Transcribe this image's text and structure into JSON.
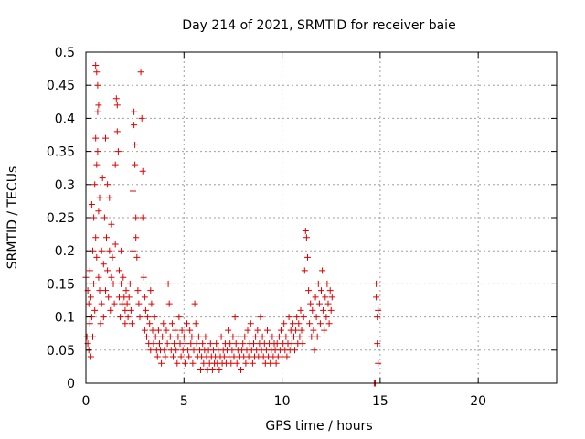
{
  "chart_data": {
    "type": "scatter",
    "title": "Day 214 of 2021, SRMTID for receiver baie",
    "xlabel": "GPS time / hours",
    "ylabel": "SRMTID / TECUs",
    "xlim": [
      0,
      24
    ],
    "ylim": [
      0,
      0.5
    ],
    "x_ticks": [
      0,
      5,
      10,
      15,
      20
    ],
    "x_tick_labels": [
      "0",
      "5",
      "10",
      "15",
      "20"
    ],
    "y_ticks": [
      0,
      0.05,
      0.1,
      0.15,
      0.2,
      0.25,
      0.3,
      0.35,
      0.4,
      0.45,
      0.5
    ],
    "y_tick_labels": [
      "0",
      "0.05",
      "0.1",
      "0.15",
      "0.2",
      "0.25",
      "0.3",
      "0.35",
      "0.4",
      "0.45",
      "0.5"
    ],
    "grid": true,
    "marker": "+",
    "color": "#e00000",
    "series": [
      {
        "name": "SRMTID",
        "points": [
          [
            0.0,
            0.16
          ],
          [
            0.05,
            0.07
          ],
          [
            0.1,
            0.14
          ],
          [
            0.1,
            0.06
          ],
          [
            0.15,
            0.12
          ],
          [
            0.15,
            0.05
          ],
          [
            0.2,
            0.09
          ],
          [
            0.2,
            0.17
          ],
          [
            0.25,
            0.04
          ],
          [
            0.25,
            0.13
          ],
          [
            0.3,
            0.1
          ],
          [
            0.3,
            0.27
          ],
          [
            0.35,
            0.2
          ],
          [
            0.35,
            0.07
          ],
          [
            0.4,
            0.25
          ],
          [
            0.4,
            0.15
          ],
          [
            0.45,
            0.3
          ],
          [
            0.45,
            0.11
          ],
          [
            0.5,
            0.37
          ],
          [
            0.5,
            0.22
          ],
          [
            0.5,
            0.48
          ],
          [
            0.55,
            0.47
          ],
          [
            0.55,
            0.33
          ],
          [
            0.55,
            0.19
          ],
          [
            0.6,
            0.45
          ],
          [
            0.6,
            0.41
          ],
          [
            0.6,
            0.35
          ],
          [
            0.65,
            0.42
          ],
          [
            0.65,
            0.26
          ],
          [
            0.65,
            0.16
          ],
          [
            0.7,
            0.14
          ],
          [
            0.7,
            0.28
          ],
          [
            0.75,
            0.09
          ],
          [
            0.8,
            0.2
          ],
          [
            0.8,
            0.12
          ],
          [
            0.85,
            0.31
          ],
          [
            0.9,
            0.18
          ],
          [
            0.9,
            0.1
          ],
          [
            0.95,
            0.25
          ],
          [
            1.0,
            0.37
          ],
          [
            1.0,
            0.14
          ],
          [
            1.05,
            0.22
          ],
          [
            1.1,
            0.3
          ],
          [
            1.1,
            0.17
          ],
          [
            1.15,
            0.13
          ],
          [
            1.2,
            0.28
          ],
          [
            1.2,
            0.2
          ],
          [
            1.25,
            0.11
          ],
          [
            1.3,
            0.24
          ],
          [
            1.3,
            0.16
          ],
          [
            1.35,
            0.19
          ],
          [
            1.4,
            0.15
          ],
          [
            1.45,
            0.12
          ],
          [
            1.5,
            0.21
          ],
          [
            1.5,
            0.33
          ],
          [
            1.55,
            0.43
          ],
          [
            1.6,
            0.42
          ],
          [
            1.6,
            0.38
          ],
          [
            1.65,
            0.35
          ],
          [
            1.7,
            0.17
          ],
          [
            1.7,
            0.13
          ],
          [
            1.75,
            0.1
          ],
          [
            1.8,
            0.2
          ],
          [
            1.8,
            0.15
          ],
          [
            1.85,
            0.12
          ],
          [
            1.9,
            0.16
          ],
          [
            1.95,
            0.13
          ],
          [
            2.0,
            0.11
          ],
          [
            2.0,
            0.09
          ],
          [
            2.05,
            0.14
          ],
          [
            2.1,
            0.12
          ],
          [
            2.15,
            0.1
          ],
          [
            2.2,
            0.13
          ],
          [
            2.25,
            0.15
          ],
          [
            2.3,
            0.11
          ],
          [
            2.35,
            0.09
          ],
          [
            2.4,
            0.29
          ],
          [
            2.4,
            0.2
          ],
          [
            2.45,
            0.41
          ],
          [
            2.45,
            0.39
          ],
          [
            2.5,
            0.36
          ],
          [
            2.5,
            0.33
          ],
          [
            2.55,
            0.25
          ],
          [
            2.55,
            0.22
          ],
          [
            2.6,
            0.19
          ],
          [
            2.65,
            0.14
          ],
          [
            2.7,
            0.12
          ],
          [
            2.75,
            0.1
          ],
          [
            2.8,
            0.47
          ],
          [
            2.85,
            0.4
          ],
          [
            2.9,
            0.32
          ],
          [
            2.9,
            0.25
          ],
          [
            2.95,
            0.16
          ],
          [
            3.0,
            0.13
          ],
          [
            3.0,
            0.08
          ],
          [
            3.05,
            0.11
          ],
          [
            3.1,
            0.07
          ],
          [
            3.15,
            0.1
          ],
          [
            3.2,
            0.06
          ],
          [
            3.25,
            0.09
          ],
          [
            3.3,
            0.14
          ],
          [
            3.3,
            0.05
          ],
          [
            3.35,
            0.12
          ],
          [
            3.4,
            0.08
          ],
          [
            3.45,
            0.06
          ],
          [
            3.5,
            0.1
          ],
          [
            3.55,
            0.07
          ],
          [
            3.6,
            0.05
          ],
          [
            3.65,
            0.04
          ],
          [
            3.7,
            0.08
          ],
          [
            3.75,
            0.06
          ],
          [
            3.8,
            0.05
          ],
          [
            3.85,
            0.03
          ],
          [
            3.9,
            0.07
          ],
          [
            3.95,
            0.09
          ],
          [
            4.0,
            0.05
          ],
          [
            4.05,
            0.04
          ],
          [
            4.1,
            0.08
          ],
          [
            4.15,
            0.06
          ],
          [
            4.2,
            0.15
          ],
          [
            4.25,
            0.12
          ],
          [
            4.3,
            0.07
          ],
          [
            4.35,
            0.05
          ],
          [
            4.4,
            0.09
          ],
          [
            4.45,
            0.04
          ],
          [
            4.5,
            0.06
          ],
          [
            4.55,
            0.08
          ],
          [
            4.6,
            0.05
          ],
          [
            4.65,
            0.03
          ],
          [
            4.7,
            0.07
          ],
          [
            4.75,
            0.1
          ],
          [
            4.8,
            0.06
          ],
          [
            4.85,
            0.04
          ],
          [
            4.9,
            0.08
          ],
          [
            4.95,
            0.05
          ],
          [
            5.0,
            0.07
          ],
          [
            5.05,
            0.03
          ],
          [
            5.1,
            0.06
          ],
          [
            5.15,
            0.09
          ],
          [
            5.2,
            0.05
          ],
          [
            5.25,
            0.04
          ],
          [
            5.3,
            0.08
          ],
          [
            5.35,
            0.06
          ],
          [
            5.4,
            0.07
          ],
          [
            5.45,
            0.03
          ],
          [
            5.5,
            0.05
          ],
          [
            5.55,
            0.12
          ],
          [
            5.6,
            0.09
          ],
          [
            5.65,
            0.06
          ],
          [
            5.7,
            0.04
          ],
          [
            5.75,
            0.07
          ],
          [
            5.8,
            0.05
          ],
          [
            5.85,
            0.02
          ],
          [
            5.9,
            0.04
          ],
          [
            5.95,
            0.06
          ],
          [
            6.0,
            0.03
          ],
          [
            6.05,
            0.05
          ],
          [
            6.1,
            0.07
          ],
          [
            6.15,
            0.04
          ],
          [
            6.2,
            0.02
          ],
          [
            6.25,
            0.05
          ],
          [
            6.3,
            0.03
          ],
          [
            6.35,
            0.06
          ],
          [
            6.4,
            0.04
          ],
          [
            6.45,
            0.02
          ],
          [
            6.5,
            0.05
          ],
          [
            6.55,
            0.03
          ],
          [
            6.6,
            0.04
          ],
          [
            6.65,
            0.06
          ],
          [
            6.7,
            0.03
          ],
          [
            6.75,
            0.05
          ],
          [
            6.8,
            0.02
          ],
          [
            6.85,
            0.04
          ],
          [
            6.9,
            0.07
          ],
          [
            6.95,
            0.03
          ],
          [
            7.0,
            0.05
          ],
          [
            7.05,
            0.04
          ],
          [
            7.1,
            0.06
          ],
          [
            7.15,
            0.03
          ],
          [
            7.2,
            0.05
          ],
          [
            7.25,
            0.08
          ],
          [
            7.3,
            0.04
          ],
          [
            7.35,
            0.06
          ],
          [
            7.4,
            0.03
          ],
          [
            7.45,
            0.05
          ],
          [
            7.5,
            0.07
          ],
          [
            7.55,
            0.04
          ],
          [
            7.6,
            0.1
          ],
          [
            7.65,
            0.06
          ],
          [
            7.7,
            0.03
          ],
          [
            7.75,
            0.05
          ],
          [
            7.8,
            0.07
          ],
          [
            7.85,
            0.04
          ],
          [
            7.9,
            0.02
          ],
          [
            7.95,
            0.05
          ],
          [
            8.0,
            0.06
          ],
          [
            8.05,
            0.04
          ],
          [
            8.1,
            0.07
          ],
          [
            8.15,
            0.03
          ],
          [
            8.2,
            0.05
          ],
          [
            8.25,
            0.08
          ],
          [
            8.3,
            0.04
          ],
          [
            8.35,
            0.06
          ],
          [
            8.4,
            0.09
          ],
          [
            8.45,
            0.05
          ],
          [
            8.5,
            0.03
          ],
          [
            8.55,
            0.06
          ],
          [
            8.6,
            0.04
          ],
          [
            8.65,
            0.07
          ],
          [
            8.7,
            0.05
          ],
          [
            8.75,
            0.08
          ],
          [
            8.8,
            0.04
          ],
          [
            8.85,
            0.06
          ],
          [
            8.9,
            0.1
          ],
          [
            8.95,
            0.05
          ],
          [
            9.0,
            0.07
          ],
          [
            9.05,
            0.04
          ],
          [
            9.1,
            0.06
          ],
          [
            9.15,
            0.03
          ],
          [
            9.2,
            0.05
          ],
          [
            9.25,
            0.08
          ],
          [
            9.3,
            0.04
          ],
          [
            9.35,
            0.06
          ],
          [
            9.4,
            0.03
          ],
          [
            9.45,
            0.05
          ],
          [
            9.5,
            0.07
          ],
          [
            9.55,
            0.04
          ],
          [
            9.6,
            0.06
          ],
          [
            9.65,
            0.05
          ],
          [
            9.7,
            0.03
          ],
          [
            9.75,
            0.06
          ],
          [
            9.8,
            0.04
          ],
          [
            9.85,
            0.07
          ],
          [
            9.9,
            0.05
          ],
          [
            9.95,
            0.08
          ],
          [
            10.0,
            0.04
          ],
          [
            10.05,
            0.06
          ],
          [
            10.1,
            0.09
          ],
          [
            10.15,
            0.05
          ],
          [
            10.2,
            0.07
          ],
          [
            10.25,
            0.04
          ],
          [
            10.3,
            0.06
          ],
          [
            10.35,
            0.1
          ],
          [
            10.4,
            0.05
          ],
          [
            10.45,
            0.08
          ],
          [
            10.5,
            0.06
          ],
          [
            10.55,
            0.09
          ],
          [
            10.6,
            0.07
          ],
          [
            10.65,
            0.05
          ],
          [
            10.7,
            0.08
          ],
          [
            10.75,
            0.1
          ],
          [
            10.8,
            0.06
          ],
          [
            10.85,
            0.09
          ],
          [
            10.9,
            0.07
          ],
          [
            10.95,
            0.11
          ],
          [
            11.0,
            0.08
          ],
          [
            11.05,
            0.06
          ],
          [
            11.1,
            0.1
          ],
          [
            11.15,
            0.17
          ],
          [
            11.2,
            0.23
          ],
          [
            11.25,
            0.22
          ],
          [
            11.3,
            0.19
          ],
          [
            11.35,
            0.14
          ],
          [
            11.4,
            0.09
          ],
          [
            11.45,
            0.12
          ],
          [
            11.5,
            0.07
          ],
          [
            11.55,
            0.11
          ],
          [
            11.6,
            0.08
          ],
          [
            11.65,
            0.05
          ],
          [
            11.7,
            0.13
          ],
          [
            11.75,
            0.1
          ],
          [
            11.8,
            0.07
          ],
          [
            11.85,
            0.15
          ],
          [
            11.9,
            0.12
          ],
          [
            11.95,
            0.09
          ],
          [
            12.0,
            0.14
          ],
          [
            12.05,
            0.17
          ],
          [
            12.1,
            0.11
          ],
          [
            12.15,
            0.08
          ],
          [
            12.2,
            0.13
          ],
          [
            12.25,
            0.1
          ],
          [
            12.3,
            0.15
          ],
          [
            12.35,
            0.12
          ],
          [
            12.4,
            0.09
          ],
          [
            12.45,
            0.14
          ],
          [
            12.5,
            0.11
          ],
          [
            12.55,
            0.13
          ],
          [
            14.7,
            0.0
          ],
          [
            14.75,
            0.0
          ],
          [
            14.8,
            0.15
          ],
          [
            14.8,
            0.13
          ],
          [
            14.85,
            0.1
          ],
          [
            14.85,
            0.06
          ],
          [
            14.9,
            0.11
          ],
          [
            14.9,
            0.03
          ]
        ]
      }
    ]
  }
}
